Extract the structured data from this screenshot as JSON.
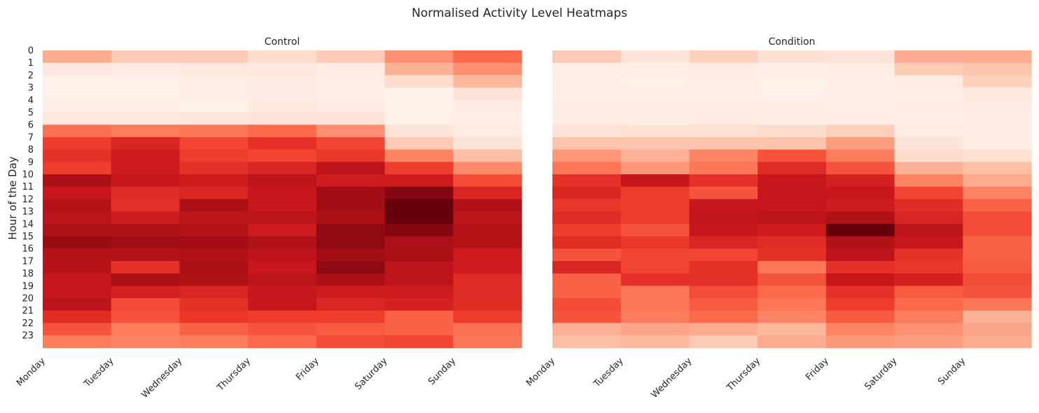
{
  "title": "Normalised Activity Level Heatmaps",
  "chart_data": [
    {
      "type": "heatmap",
      "title": "Control",
      "ylabel": "Hour of the Day",
      "xlabel": "",
      "x_tick_labels": [
        "Monday",
        "Tuesday",
        "Wednesday",
        "Thursday",
        "Friday",
        "Saturday",
        "Sunday"
      ],
      "y_tick_labels": [
        "0",
        "1",
        "2",
        "3",
        "4",
        "5",
        "6",
        "7",
        "8",
        "9",
        "10",
        "11",
        "12",
        "13",
        "14",
        "15",
        "16",
        "17",
        "18",
        "19",
        "20",
        "21",
        "22",
        "23"
      ],
      "colormap": "Reds",
      "value_range": [
        0,
        1
      ],
      "values": [
        [
          0.3,
          0.2,
          0.2,
          0.14,
          0.2,
          0.38,
          0.5
        ],
        [
          0.08,
          0.06,
          0.08,
          0.08,
          0.06,
          0.28,
          0.38
        ],
        [
          0.03,
          0.03,
          0.04,
          0.06,
          0.04,
          0.14,
          0.26
        ],
        [
          0.03,
          0.03,
          0.04,
          0.06,
          0.04,
          0.02,
          0.1
        ],
        [
          0.04,
          0.04,
          0.03,
          0.07,
          0.06,
          0.02,
          0.06
        ],
        [
          0.08,
          0.08,
          0.09,
          0.1,
          0.1,
          0.03,
          0.04
        ],
        [
          0.48,
          0.44,
          0.46,
          0.5,
          0.38,
          0.1,
          0.06
        ],
        [
          0.62,
          0.7,
          0.6,
          0.66,
          0.6,
          0.2,
          0.1
        ],
        [
          0.66,
          0.74,
          0.62,
          0.6,
          0.64,
          0.42,
          0.24
        ],
        [
          0.62,
          0.74,
          0.66,
          0.7,
          0.8,
          0.62,
          0.4
        ],
        [
          0.86,
          0.76,
          0.74,
          0.8,
          0.74,
          0.74,
          0.58
        ],
        [
          0.76,
          0.68,
          0.7,
          0.76,
          0.88,
          0.94,
          0.7
        ],
        [
          0.82,
          0.66,
          0.86,
          0.76,
          0.88,
          1.0,
          0.84
        ],
        [
          0.8,
          0.74,
          0.8,
          0.8,
          0.86,
          1.0,
          0.8
        ],
        [
          0.84,
          0.84,
          0.82,
          0.74,
          0.92,
          0.94,
          0.82
        ],
        [
          0.9,
          0.88,
          0.88,
          0.84,
          0.92,
          0.86,
          0.82
        ],
        [
          0.82,
          0.82,
          0.84,
          0.8,
          0.88,
          0.86,
          0.74
        ],
        [
          0.82,
          0.66,
          0.86,
          0.76,
          0.92,
          0.8,
          0.74
        ],
        [
          0.76,
          0.86,
          0.84,
          0.8,
          0.86,
          0.8,
          0.68
        ],
        [
          0.76,
          0.72,
          0.7,
          0.76,
          0.74,
          0.74,
          0.68
        ],
        [
          0.8,
          0.58,
          0.66,
          0.76,
          0.7,
          0.72,
          0.68
        ],
        [
          0.68,
          0.56,
          0.64,
          0.62,
          0.62,
          0.52,
          0.62
        ],
        [
          0.56,
          0.44,
          0.52,
          0.56,
          0.54,
          0.52,
          0.48
        ],
        [
          0.44,
          0.42,
          0.44,
          0.5,
          0.58,
          0.6,
          0.46
        ]
      ]
    },
    {
      "type": "heatmap",
      "title": "Condition",
      "xlabel": "",
      "ylabel": "",
      "x_tick_labels": [
        "Monday",
        "Tuesday",
        "Wednesday",
        "Thursday",
        "Friday",
        "Saturday",
        "Sunday"
      ],
      "colormap": "Reds",
      "value_range": [
        0,
        1
      ],
      "values": [
        [
          0.2,
          0.1,
          0.18,
          0.12,
          0.1,
          0.3,
          0.3
        ],
        [
          0.04,
          0.04,
          0.06,
          0.04,
          0.05,
          0.2,
          0.22
        ],
        [
          0.04,
          0.03,
          0.04,
          0.03,
          0.04,
          0.06,
          0.18
        ],
        [
          0.04,
          0.04,
          0.04,
          0.03,
          0.04,
          0.04,
          0.08
        ],
        [
          0.05,
          0.05,
          0.05,
          0.05,
          0.04,
          0.05,
          0.06
        ],
        [
          0.05,
          0.05,
          0.06,
          0.05,
          0.05,
          0.04,
          0.05
        ],
        [
          0.1,
          0.12,
          0.12,
          0.14,
          0.18,
          0.06,
          0.05
        ],
        [
          0.22,
          0.22,
          0.22,
          0.22,
          0.34,
          0.1,
          0.06
        ],
        [
          0.36,
          0.28,
          0.42,
          0.56,
          0.44,
          0.14,
          0.12
        ],
        [
          0.46,
          0.36,
          0.46,
          0.68,
          0.56,
          0.28,
          0.24
        ],
        [
          0.66,
          0.76,
          0.66,
          0.76,
          0.72,
          0.42,
          0.3
        ],
        [
          0.7,
          0.62,
          0.56,
          0.76,
          0.76,
          0.6,
          0.42
        ],
        [
          0.64,
          0.62,
          0.76,
          0.76,
          0.74,
          0.68,
          0.52
        ],
        [
          0.68,
          0.62,
          0.78,
          0.8,
          0.84,
          0.7,
          0.58
        ],
        [
          0.62,
          0.56,
          0.76,
          0.74,
          1.0,
          0.8,
          0.58
        ],
        [
          0.68,
          0.64,
          0.7,
          0.68,
          0.84,
          0.76,
          0.52
        ],
        [
          0.56,
          0.6,
          0.6,
          0.66,
          0.8,
          0.66,
          0.52
        ],
        [
          0.7,
          0.6,
          0.66,
          0.46,
          0.66,
          0.64,
          0.54
        ],
        [
          0.52,
          0.66,
          0.66,
          0.56,
          0.76,
          0.72,
          0.58
        ],
        [
          0.52,
          0.46,
          0.58,
          0.5,
          0.66,
          0.54,
          0.56
        ],
        [
          0.58,
          0.46,
          0.54,
          0.46,
          0.62,
          0.5,
          0.46
        ],
        [
          0.56,
          0.44,
          0.5,
          0.42,
          0.54,
          0.44,
          0.28
        ],
        [
          0.28,
          0.32,
          0.3,
          0.26,
          0.42,
          0.38,
          0.32
        ],
        [
          0.24,
          0.26,
          0.2,
          0.3,
          0.36,
          0.34,
          0.3
        ]
      ]
    }
  ]
}
